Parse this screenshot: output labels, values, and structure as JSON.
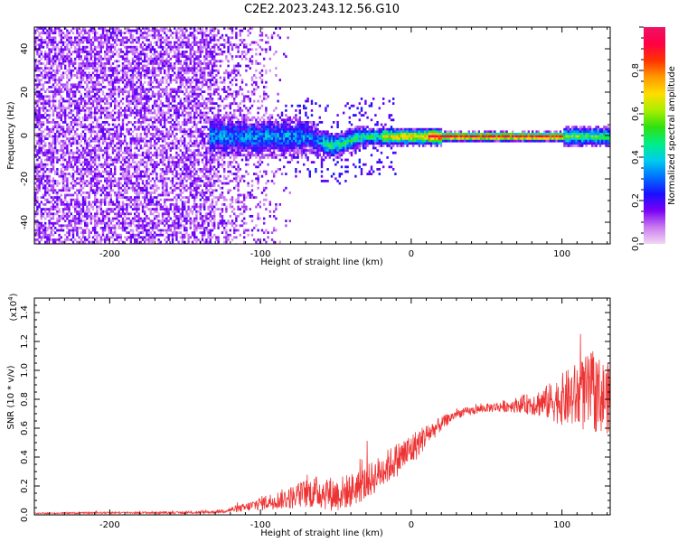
{
  "title": "C2E2.2023.243.12.56.G10",
  "colors": {
    "snr_line": "#ee3333",
    "axis": "#000000",
    "colorbar_stops": [
      "#f2d6f2",
      "#c97cf0",
      "#7a00f5",
      "#1a10ff",
      "#0070ff",
      "#00ccee",
      "#00ee88",
      "#30e010",
      "#a8ee00",
      "#ffdd00",
      "#ff9900",
      "#ff3300",
      "#ff0044",
      "#ee1166"
    ]
  },
  "chart_data": [
    {
      "type": "heatmap",
      "title": "C2E2.2023.243.12.56.G10",
      "xlabel": "Height of straight line (km)",
      "ylabel": "Frequency (Hz)",
      "xlim": [
        -250,
        132
      ],
      "ylim": [
        -50,
        50
      ],
      "xticks": [
        -200,
        -100,
        0,
        100
      ],
      "yticks": [
        -40,
        -20,
        0,
        20,
        40
      ],
      "colorbar": {
        "label": "Normalized spectral amplitude",
        "range": [
          0,
          1
        ],
        "ticks": [
          "0.0",
          "0.2",
          "0.4",
          "0.6",
          "0.8"
        ]
      },
      "description_values": {
        "noise_region_x": [
          -250,
          -105
        ],
        "noise_fade_x": [
          -130,
          -80
        ],
        "signal_band_center_hz": 0,
        "signal_band_start_x": -135
      }
    },
    {
      "type": "line",
      "xlabel": "Height of straight line (km)",
      "ylabel": "SNR (10 * v/v)",
      "y_multiplier_label": "(x10",
      "y_multiplier_exponent": "4",
      "y_multiplier_close": ")",
      "xlim": [
        -250,
        132
      ],
      "ylim": [
        0,
        1.5
      ],
      "xticks": [
        -200,
        -100,
        0,
        100
      ],
      "yticks": [
        "0.0",
        "0.2",
        "0.4",
        "0.6",
        "0.8",
        "1.0",
        "1.2",
        "1.4"
      ],
      "series": [
        {
          "color": "#ee3333",
          "x": [
            -250,
            -200,
            -150,
            -130,
            -110,
            -100,
            -90,
            -80,
            -70,
            -60,
            -50,
            -40,
            -30,
            -20,
            -10,
            0,
            10,
            20,
            30,
            40,
            50,
            60,
            70,
            80,
            90,
            100,
            110,
            120,
            132
          ],
          "y": [
            0.01,
            0.015,
            0.015,
            0.02,
            0.05,
            0.08,
            0.1,
            0.12,
            0.15,
            0.16,
            0.14,
            0.17,
            0.22,
            0.3,
            0.38,
            0.45,
            0.55,
            0.63,
            0.7,
            0.72,
            0.74,
            0.75,
            0.76,
            0.77,
            0.78,
            0.8,
            0.82,
            0.85,
            0.8
          ],
          "noise_amplitude": [
            0.004,
            0.006,
            0.008,
            0.01,
            0.03,
            0.05,
            0.06,
            0.08,
            0.1,
            0.12,
            0.12,
            0.12,
            0.12,
            0.12,
            0.12,
            0.12,
            0.08,
            0.05,
            0.03,
            0.03,
            0.03,
            0.04,
            0.05,
            0.08,
            0.12,
            0.18,
            0.24,
            0.28,
            0.24
          ]
        }
      ]
    }
  ]
}
